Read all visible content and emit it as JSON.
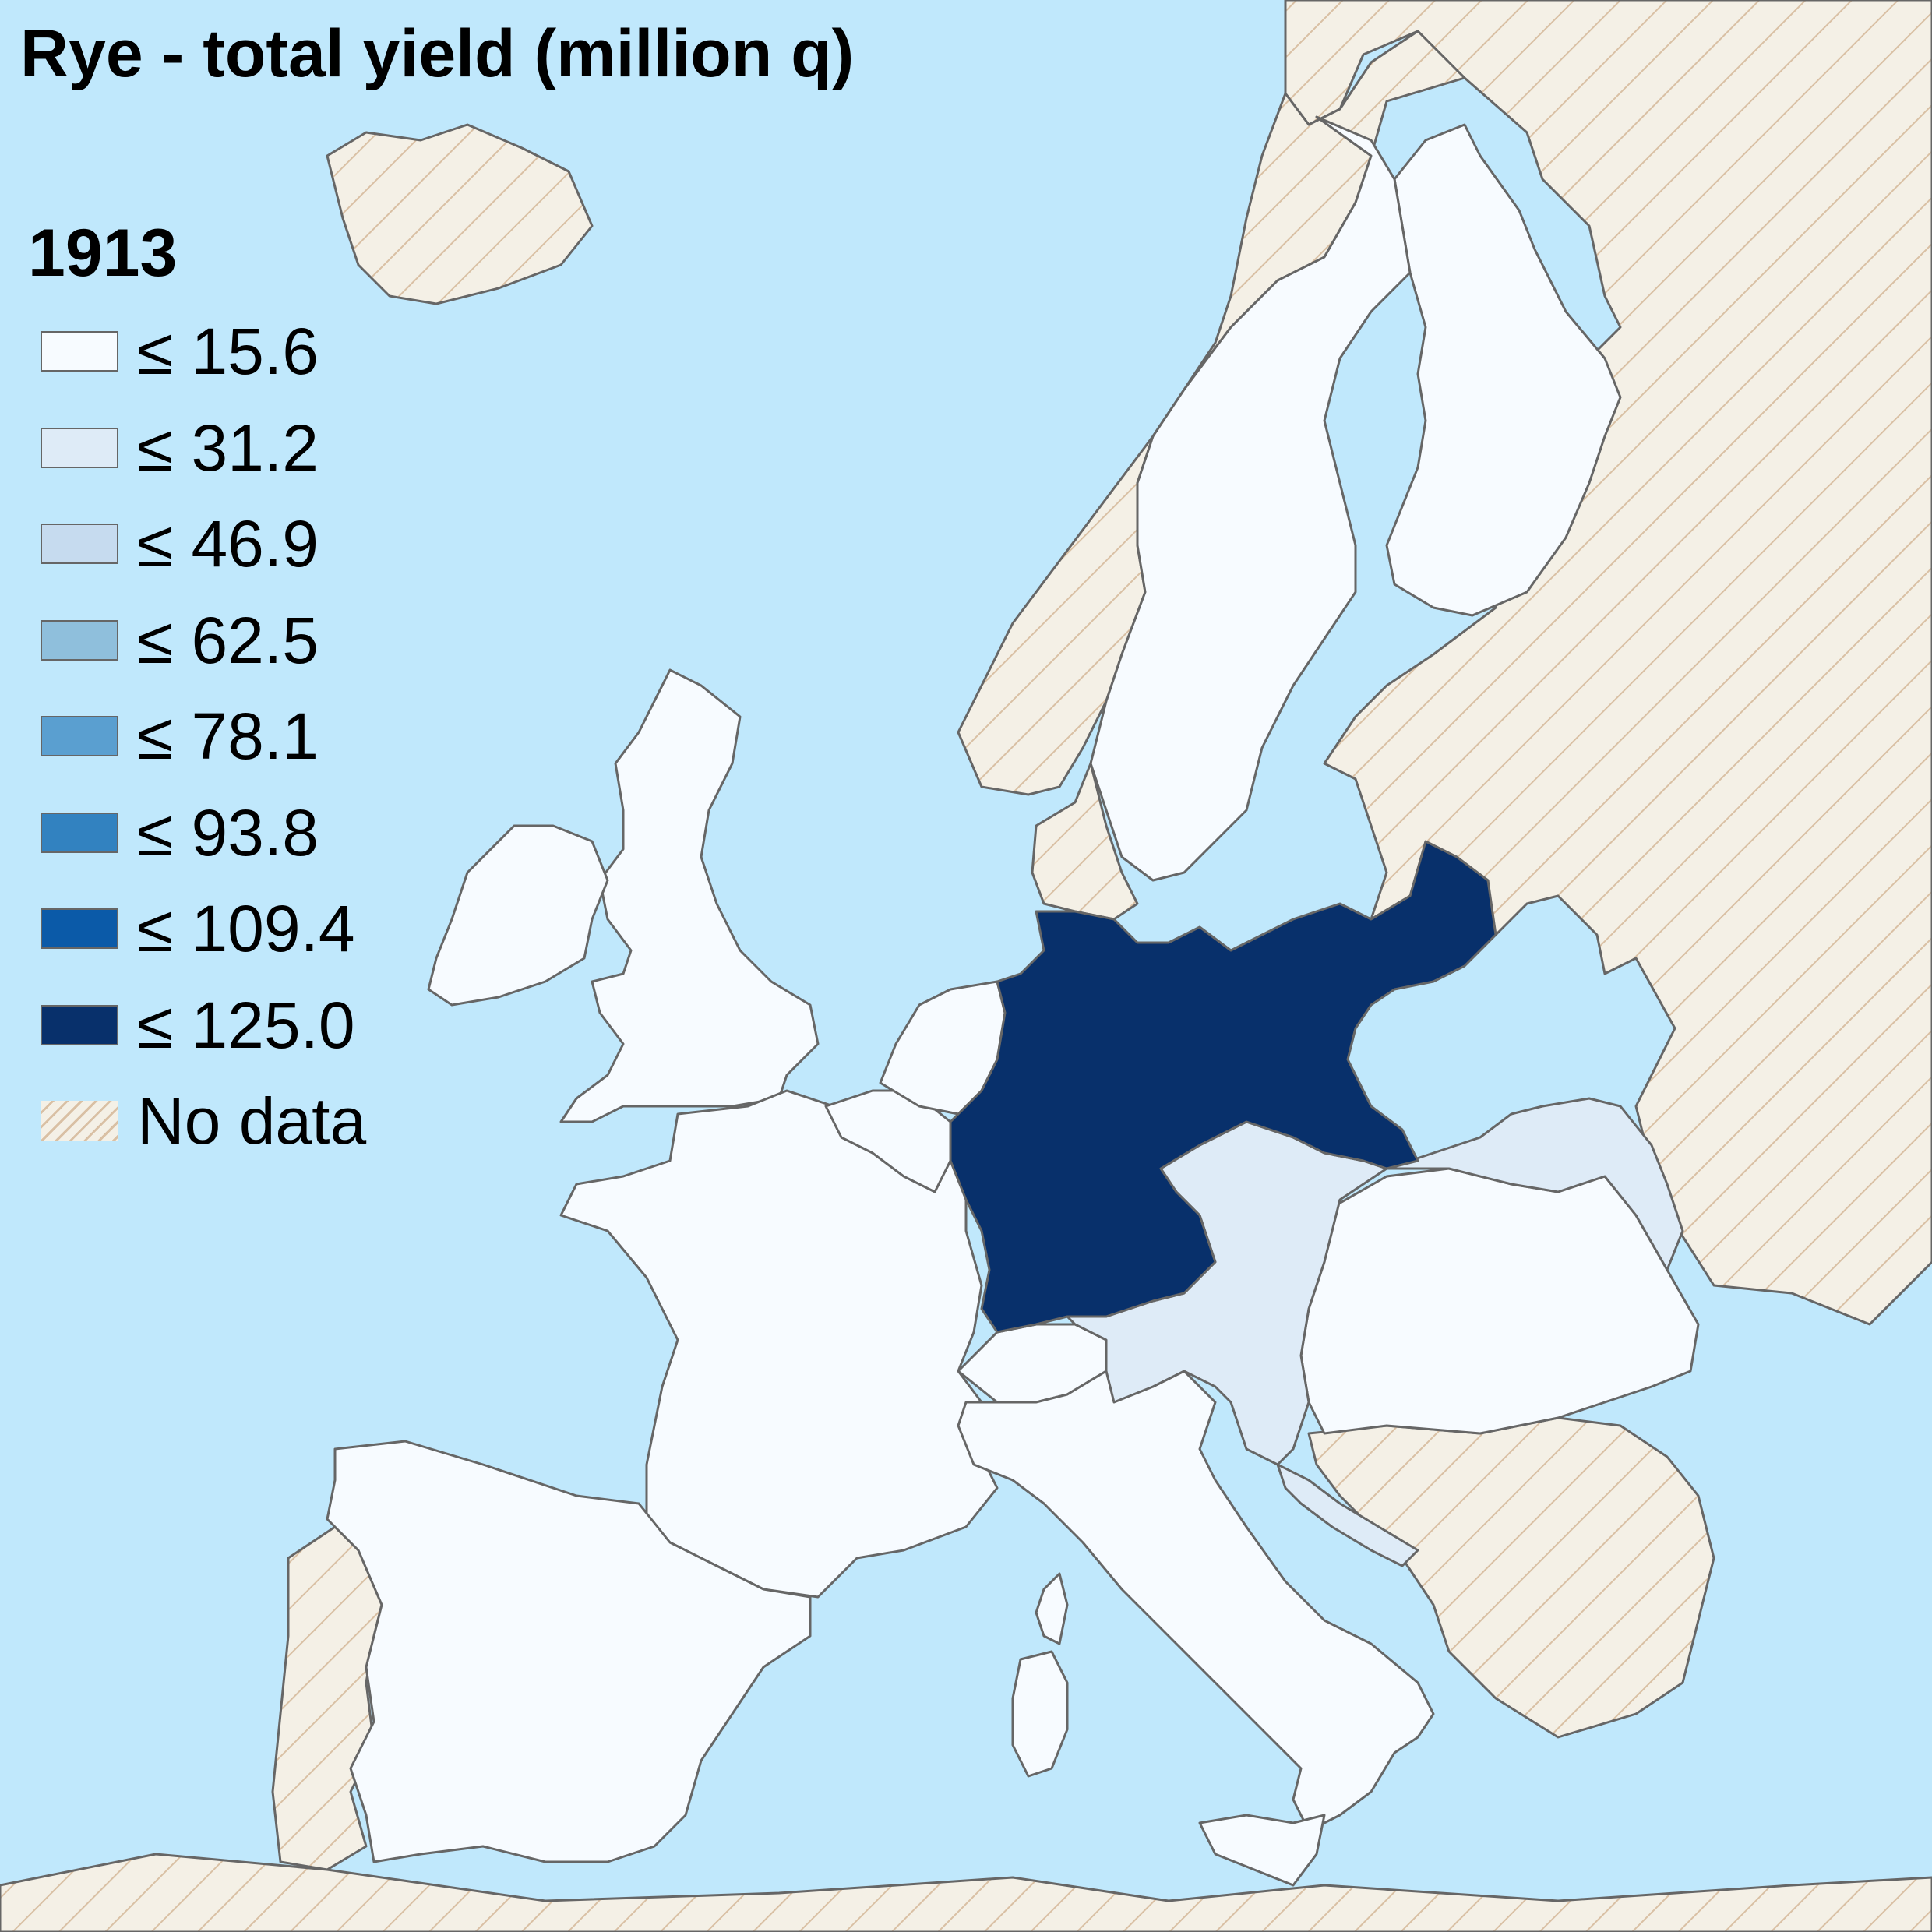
{
  "title": "Rye - total yield (million q)",
  "year": "1913",
  "colors": {
    "sea": "#c0e8fc",
    "no_data_fill": "#f4f0e6",
    "no_data_hatch": "#d9c0a4",
    "border": "#666666"
  },
  "legend": [
    {
      "label": "≤ 15.6",
      "color": "#f7fbff"
    },
    {
      "label": "≤ 31.2",
      "color": "#deebf7"
    },
    {
      "label": "≤ 46.9",
      "color": "#c6dbef"
    },
    {
      "label": "≤ 62.5",
      "color": "#8fbfdc"
    },
    {
      "label": "≤ 78.1",
      "color": "#5a9fd0"
    },
    {
      "label": "≤ 93.8",
      "color": "#3282c0"
    },
    {
      "label": "≤ 109.4",
      "color": "#0b5aa8"
    },
    {
      "label": "≤ 125.0",
      "color": "#08306b"
    },
    {
      "label": "No data",
      "color": "no-data"
    }
  ],
  "countries": [
    {
      "name": "Germany",
      "class": "≤ 125.0",
      "color": "#08306b"
    },
    {
      "name": "Austria-Hungary (Austria)",
      "class": "≤ 31.2",
      "color": "#deebf7"
    },
    {
      "name": "Austria-Hungary (Galicia-Bukovina)",
      "class": "≤ 31.2",
      "color": "#deebf7"
    },
    {
      "name": "Hungary",
      "class": "≤ 15.6",
      "color": "#f7fbff"
    },
    {
      "name": "Dalmatia",
      "class": "≤ 31.2",
      "color": "#deebf7"
    },
    {
      "name": "Sweden",
      "class": "≤ 15.6",
      "color": "#f7fbff"
    },
    {
      "name": "Finland",
      "class": "≤ 15.6",
      "color": "#f7fbff"
    },
    {
      "name": "United Kingdom",
      "class": "≤ 15.6",
      "color": "#f7fbff"
    },
    {
      "name": "Ireland",
      "class": "≤ 15.6",
      "color": "#f7fbff"
    },
    {
      "name": "France",
      "class": "≤ 15.6",
      "color": "#f7fbff"
    },
    {
      "name": "Spain",
      "class": "≤ 15.6",
      "color": "#f7fbff"
    },
    {
      "name": "Italy",
      "class": "≤ 15.6",
      "color": "#f7fbff"
    },
    {
      "name": "Switzerland",
      "class": "≤ 15.6",
      "color": "#f7fbff"
    },
    {
      "name": "Belgium",
      "class": "≤ 15.6",
      "color": "#f7fbff"
    },
    {
      "name": "Netherlands",
      "class": "≤ 15.6",
      "color": "#f7fbff"
    },
    {
      "name": "Norway",
      "class": "No data",
      "color": "no-data"
    },
    {
      "name": "Denmark",
      "class": "No data",
      "color": "no-data"
    },
    {
      "name": "Russia",
      "class": "No data",
      "color": "no-data"
    },
    {
      "name": "Portugal",
      "class": "No data",
      "color": "no-data"
    },
    {
      "name": "Balkans",
      "class": "No data",
      "color": "no-data"
    },
    {
      "name": "Iceland",
      "class": "No data",
      "color": "no-data"
    },
    {
      "name": "North Africa",
      "class": "No data",
      "color": "no-data"
    }
  ]
}
